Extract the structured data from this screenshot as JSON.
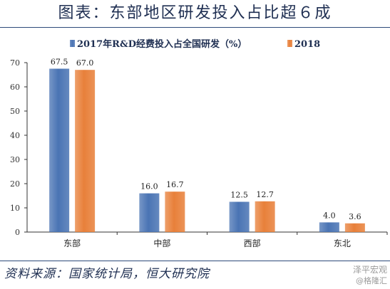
{
  "header": {
    "title": "图表：东部地区研发投入占比超６成"
  },
  "footer": {
    "source": "资料来源：国家统计局，恒大研究院"
  },
  "watermark": {
    "line1": "泽平宏观",
    "line2": "@格隆汇"
  },
  "colors": {
    "series_2017": "#4a74b4",
    "series_2018": "#e8803a",
    "rule": "#2e4a7a"
  },
  "chart_data": {
    "type": "bar",
    "categories": [
      "东部",
      "中部",
      "西部",
      "东北"
    ],
    "series": [
      {
        "name": "2017年R&D经费投入占全国研发（%）",
        "values": [
          67.5,
          16.0,
          12.5,
          4.0
        ],
        "labels": [
          "67.5",
          "16.0",
          "12.5",
          "4.0"
        ]
      },
      {
        "name": "2018",
        "values": [
          67.0,
          16.7,
          12.7,
          3.6
        ],
        "labels": [
          "67.0",
          "16.7",
          "12.7",
          "3.6"
        ]
      }
    ],
    "ylim": [
      0,
      70
    ],
    "yticks": [
      "0",
      "10",
      "20",
      "30",
      "40",
      "50",
      "60",
      "70"
    ],
    "legend": "top",
    "grid": false
  }
}
